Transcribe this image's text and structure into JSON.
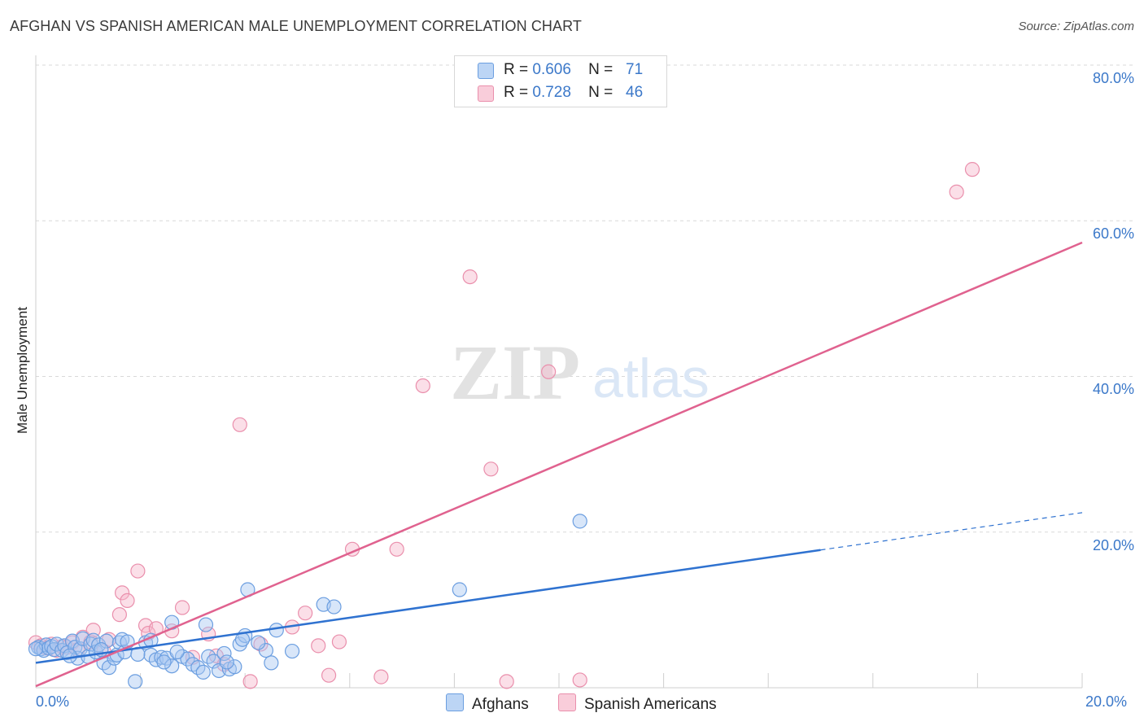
{
  "title": "AFGHAN VS SPANISH AMERICAN MALE UNEMPLOYMENT CORRELATION CHART",
  "source": "Source: ZipAtlas.com",
  "watermark": {
    "zip": "ZIP",
    "atlas": "atlas"
  },
  "colors": {
    "afghans_fill": "#a9c8f2",
    "afghans_stroke": "#6b9ee0",
    "afghans_line": "#2f72d0",
    "spanish_fill": "#f7b9cc",
    "spanish_stroke": "#ea8fac",
    "spanish_line": "#e0628f",
    "axis_text": "#3b78c9",
    "grid": "#d9d9d9"
  },
  "legend": {
    "afghans": {
      "r_label": "R =",
      "r_value": "0.606",
      "n_label": "N =",
      "n_value": "71"
    },
    "spanish": {
      "r_label": "R =",
      "r_value": "0.728",
      "n_label": "N =",
      "n_value": "46"
    }
  },
  "series_labels": {
    "afghans": "Afghans",
    "spanish": "Spanish Americans"
  },
  "chart_data": {
    "type": "scatter",
    "title": "AFGHAN VS SPANISH AMERICAN MALE UNEMPLOYMENT CORRELATION CHART",
    "xlabel": "",
    "ylabel": "Male Unemployment",
    "xlim": [
      0,
      20
    ],
    "ylim": [
      0,
      80
    ],
    "x_tick_labels": [
      "0.0%",
      "20.0%"
    ],
    "y_tick_labels": [
      "20.0%",
      "40.0%",
      "60.0%",
      "80.0%"
    ],
    "y_ticks": [
      20,
      40,
      60,
      80
    ],
    "legend_position": "top-center",
    "series": [
      {
        "name": "Afghans",
        "r": 0.606,
        "n": 71,
        "trend": {
          "x0": 0,
          "y0": 3.2,
          "x1": 15,
          "y1": 17.7,
          "dashed_to_x": 20,
          "dashed_to_y": 22.5
        },
        "points": [
          [
            0.05,
            5.2
          ],
          [
            0.1,
            5.0
          ],
          [
            0.15,
            4.8
          ],
          [
            0.2,
            5.5
          ],
          [
            0.25,
            5.1
          ],
          [
            0.3,
            5.3
          ],
          [
            0.35,
            4.9
          ],
          [
            0.4,
            5.6
          ],
          [
            0.5,
            4.8
          ],
          [
            0.55,
            5.4
          ],
          [
            0.6,
            4.5
          ],
          [
            0.7,
            6.0
          ],
          [
            0.75,
            5.2
          ],
          [
            0.8,
            3.8
          ],
          [
            0.85,
            5.0
          ],
          [
            0.9,
            6.3
          ],
          [
            1.0,
            4.0
          ],
          [
            1.05,
            5.6
          ],
          [
            1.1,
            6.1
          ],
          [
            1.15,
            4.6
          ],
          [
            1.2,
            5.5
          ],
          [
            1.3,
            3.2
          ],
          [
            1.35,
            6.0
          ],
          [
            1.4,
            2.6
          ],
          [
            1.5,
            3.8
          ],
          [
            1.55,
            4.2
          ],
          [
            1.6,
            5.8
          ],
          [
            1.65,
            6.2
          ],
          [
            1.7,
            4.6
          ],
          [
            1.75,
            5.9
          ],
          [
            2.1,
            5.8
          ],
          [
            2.2,
            4.2
          ],
          [
            2.3,
            3.6
          ],
          [
            2.4,
            3.9
          ],
          [
            2.5,
            3.8
          ],
          [
            2.6,
            2.8
          ],
          [
            2.8,
            4.0
          ],
          [
            2.9,
            3.7
          ],
          [
            3.0,
            3.0
          ],
          [
            3.1,
            2.6
          ],
          [
            3.2,
            2.0
          ],
          [
            3.3,
            4.0
          ],
          [
            3.4,
            3.4
          ],
          [
            3.5,
            2.2
          ],
          [
            3.6,
            4.4
          ],
          [
            3.7,
            2.4
          ],
          [
            3.8,
            2.7
          ],
          [
            3.9,
            5.6
          ],
          [
            4.0,
            6.7
          ],
          [
            4.05,
            12.6
          ],
          [
            4.4,
            4.8
          ],
          [
            4.5,
            3.2
          ],
          [
            4.6,
            7.4
          ],
          [
            4.9,
            4.7
          ],
          [
            5.5,
            10.7
          ],
          [
            5.7,
            10.4
          ],
          [
            8.1,
            12.6
          ],
          [
            10.4,
            21.4
          ],
          [
            1.9,
            0.8
          ],
          [
            2.6,
            8.4
          ],
          [
            2.2,
            6.1
          ],
          [
            1.95,
            4.3
          ],
          [
            2.7,
            4.6
          ],
          [
            3.25,
            8.1
          ],
          [
            3.65,
            3.3
          ],
          [
            3.95,
            6.2
          ],
          [
            4.25,
            5.8
          ],
          [
            2.45,
            3.3
          ],
          [
            1.25,
            4.9
          ],
          [
            0.65,
            4.1
          ],
          [
            0.0,
            5.0
          ]
        ]
      },
      {
        "name": "Spanish Americans",
        "r": 0.728,
        "n": 46,
        "trend": {
          "x0": 0,
          "y0": 0.2,
          "x1": 20,
          "y1": 57.2
        },
        "points": [
          [
            0.0,
            5.8
          ],
          [
            0.1,
            5.4
          ],
          [
            0.2,
            5.1
          ],
          [
            0.3,
            5.6
          ],
          [
            0.4,
            4.8
          ],
          [
            0.5,
            5.3
          ],
          [
            0.6,
            5.2
          ],
          [
            0.7,
            5.8
          ],
          [
            0.8,
            4.9
          ],
          [
            0.9,
            6.5
          ],
          [
            1.05,
            5.9
          ],
          [
            1.1,
            7.4
          ],
          [
            1.3,
            4.7
          ],
          [
            1.4,
            6.2
          ],
          [
            1.6,
            9.4
          ],
          [
            1.65,
            12.2
          ],
          [
            1.75,
            11.2
          ],
          [
            1.95,
            15.0
          ],
          [
            2.1,
            8.0
          ],
          [
            2.15,
            7.0
          ],
          [
            2.3,
            7.6
          ],
          [
            2.6,
            7.3
          ],
          [
            2.8,
            10.3
          ],
          [
            3.0,
            3.9
          ],
          [
            3.3,
            6.9
          ],
          [
            3.45,
            4.1
          ],
          [
            3.6,
            3.0
          ],
          [
            3.9,
            33.8
          ],
          [
            4.1,
            0.8
          ],
          [
            4.3,
            5.6
          ],
          [
            4.9,
            7.8
          ],
          [
            5.15,
            9.6
          ],
          [
            5.4,
            5.4
          ],
          [
            5.6,
            1.6
          ],
          [
            5.8,
            5.9
          ],
          [
            6.05,
            17.8
          ],
          [
            6.6,
            1.4
          ],
          [
            6.9,
            17.8
          ],
          [
            7.4,
            38.8
          ],
          [
            8.3,
            52.8
          ],
          [
            8.7,
            28.1
          ],
          [
            9.0,
            0.8
          ],
          [
            9.8,
            40.6
          ],
          [
            10.4,
            1.0
          ],
          [
            17.6,
            63.7
          ],
          [
            17.9,
            66.6
          ]
        ]
      }
    ]
  }
}
